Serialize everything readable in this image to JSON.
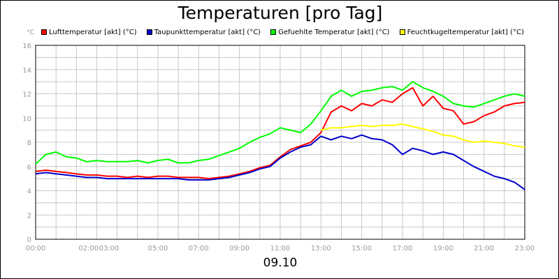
{
  "chart_data": {
    "type": "line",
    "title": "Temperaturen [pro Tag]",
    "ylabel": "°C",
    "xcaption": "09.10",
    "ylim": [
      0,
      16
    ],
    "yticks": [
      0,
      2,
      4,
      6,
      8,
      10,
      12,
      14,
      16
    ],
    "xlim": [
      0,
      24
    ],
    "xticks": [
      {
        "x": 0,
        "label": "00:00"
      },
      {
        "x": 2.6,
        "label": "02:00"
      },
      {
        "x": 3.6,
        "label": "03:00"
      },
      {
        "x": 6,
        "label": "05:00"
      },
      {
        "x": 8,
        "label": "07:00"
      },
      {
        "x": 10,
        "label": "09:00"
      },
      {
        "x": 12,
        "label": "11:00"
      },
      {
        "x": 14,
        "label": "13:00"
      },
      {
        "x": 16,
        "label": "15:00"
      },
      {
        "x": 18,
        "label": "17:00"
      },
      {
        "x": 20,
        "label": "19:00"
      },
      {
        "x": 22,
        "label": "21:00"
      },
      {
        "x": 24,
        "label": "23:00"
      }
    ],
    "grid": true,
    "legend_position": "top",
    "x": [
      0,
      0.5,
      1,
      1.5,
      2,
      2.5,
      3,
      3.5,
      4,
      4.5,
      5,
      5.5,
      6,
      6.5,
      7,
      7.5,
      8,
      8.5,
      9,
      9.5,
      10,
      10.5,
      11,
      11.5,
      12,
      12.5,
      13,
      13.5,
      14,
      14.5,
      15,
      15.5,
      16,
      16.5,
      17,
      17.5,
      18,
      18.5,
      19,
      19.5,
      20,
      20.5,
      21,
      21.5,
      22,
      22.5,
      23,
      23.5,
      24
    ],
    "series": [
      {
        "name": "Lufttemperatur [akt] (°C)",
        "color": "#ff0000",
        "values": [
          5.6,
          5.7,
          5.6,
          5.5,
          5.4,
          5.3,
          5.3,
          5.2,
          5.2,
          5.1,
          5.2,
          5.1,
          5.2,
          5.2,
          5.1,
          5.1,
          5.1,
          5.0,
          5.1,
          5.2,
          5.4,
          5.6,
          5.9,
          6.1,
          6.8,
          7.4,
          7.7,
          8.0,
          8.8,
          10.5,
          11.0,
          10.6,
          11.2,
          11.0,
          11.5,
          11.3,
          12.0,
          12.5,
          11.0,
          11.8,
          10.8,
          10.6,
          9.5,
          9.7,
          10.2,
          10.5,
          11.0,
          11.2,
          11.3
        ]
      },
      {
        "name": "Taupunkttemperatur [akt] (°C)",
        "color": "#0000cc",
        "values": [
          5.4,
          5.5,
          5.4,
          5.3,
          5.2,
          5.1,
          5.1,
          5.0,
          5.0,
          5.0,
          5.0,
          5.0,
          5.0,
          5.0,
          5.0,
          4.9,
          4.9,
          4.9,
          5.0,
          5.1,
          5.3,
          5.5,
          5.8,
          6.0,
          6.7,
          7.2,
          7.6,
          7.8,
          8.5,
          8.2,
          8.5,
          8.3,
          8.6,
          8.3,
          8.2,
          7.8,
          7.0,
          7.5,
          7.3,
          7.0,
          7.2,
          7.0,
          6.5,
          6.0,
          5.6,
          5.2,
          5.0,
          4.7,
          4.1
        ]
      },
      {
        "name": "Gefuehlte Temperatur [akt] (°C)",
        "color": "#00ff00",
        "values": [
          6.2,
          7.0,
          7.2,
          6.8,
          6.7,
          6.4,
          6.5,
          6.4,
          6.4,
          6.4,
          6.5,
          6.3,
          6.5,
          6.6,
          6.3,
          6.3,
          6.5,
          6.6,
          6.9,
          7.2,
          7.5,
          8.0,
          8.4,
          8.7,
          9.2,
          9.0,
          8.8,
          9.5,
          10.6,
          11.8,
          12.3,
          11.8,
          12.2,
          12.3,
          12.5,
          12.6,
          12.3,
          13.0,
          12.5,
          12.2,
          11.8,
          11.2,
          11.0,
          10.9,
          11.2,
          11.5,
          11.8,
          12.0,
          11.8
        ]
      },
      {
        "name": "Feuchtkugeltemperatur [akt] (°C)",
        "color": "#ffff00",
        "values": [
          null,
          null,
          null,
          null,
          null,
          null,
          null,
          null,
          null,
          null,
          null,
          null,
          null,
          null,
          null,
          null,
          null,
          null,
          null,
          null,
          null,
          null,
          null,
          null,
          null,
          null,
          null,
          null,
          9.0,
          9.2,
          9.2,
          9.3,
          9.4,
          9.3,
          9.4,
          9.4,
          9.5,
          9.3,
          9.1,
          8.9,
          8.6,
          8.5,
          8.2,
          8.0,
          8.1,
          8.0,
          7.9,
          7.7,
          7.6
        ]
      }
    ]
  }
}
